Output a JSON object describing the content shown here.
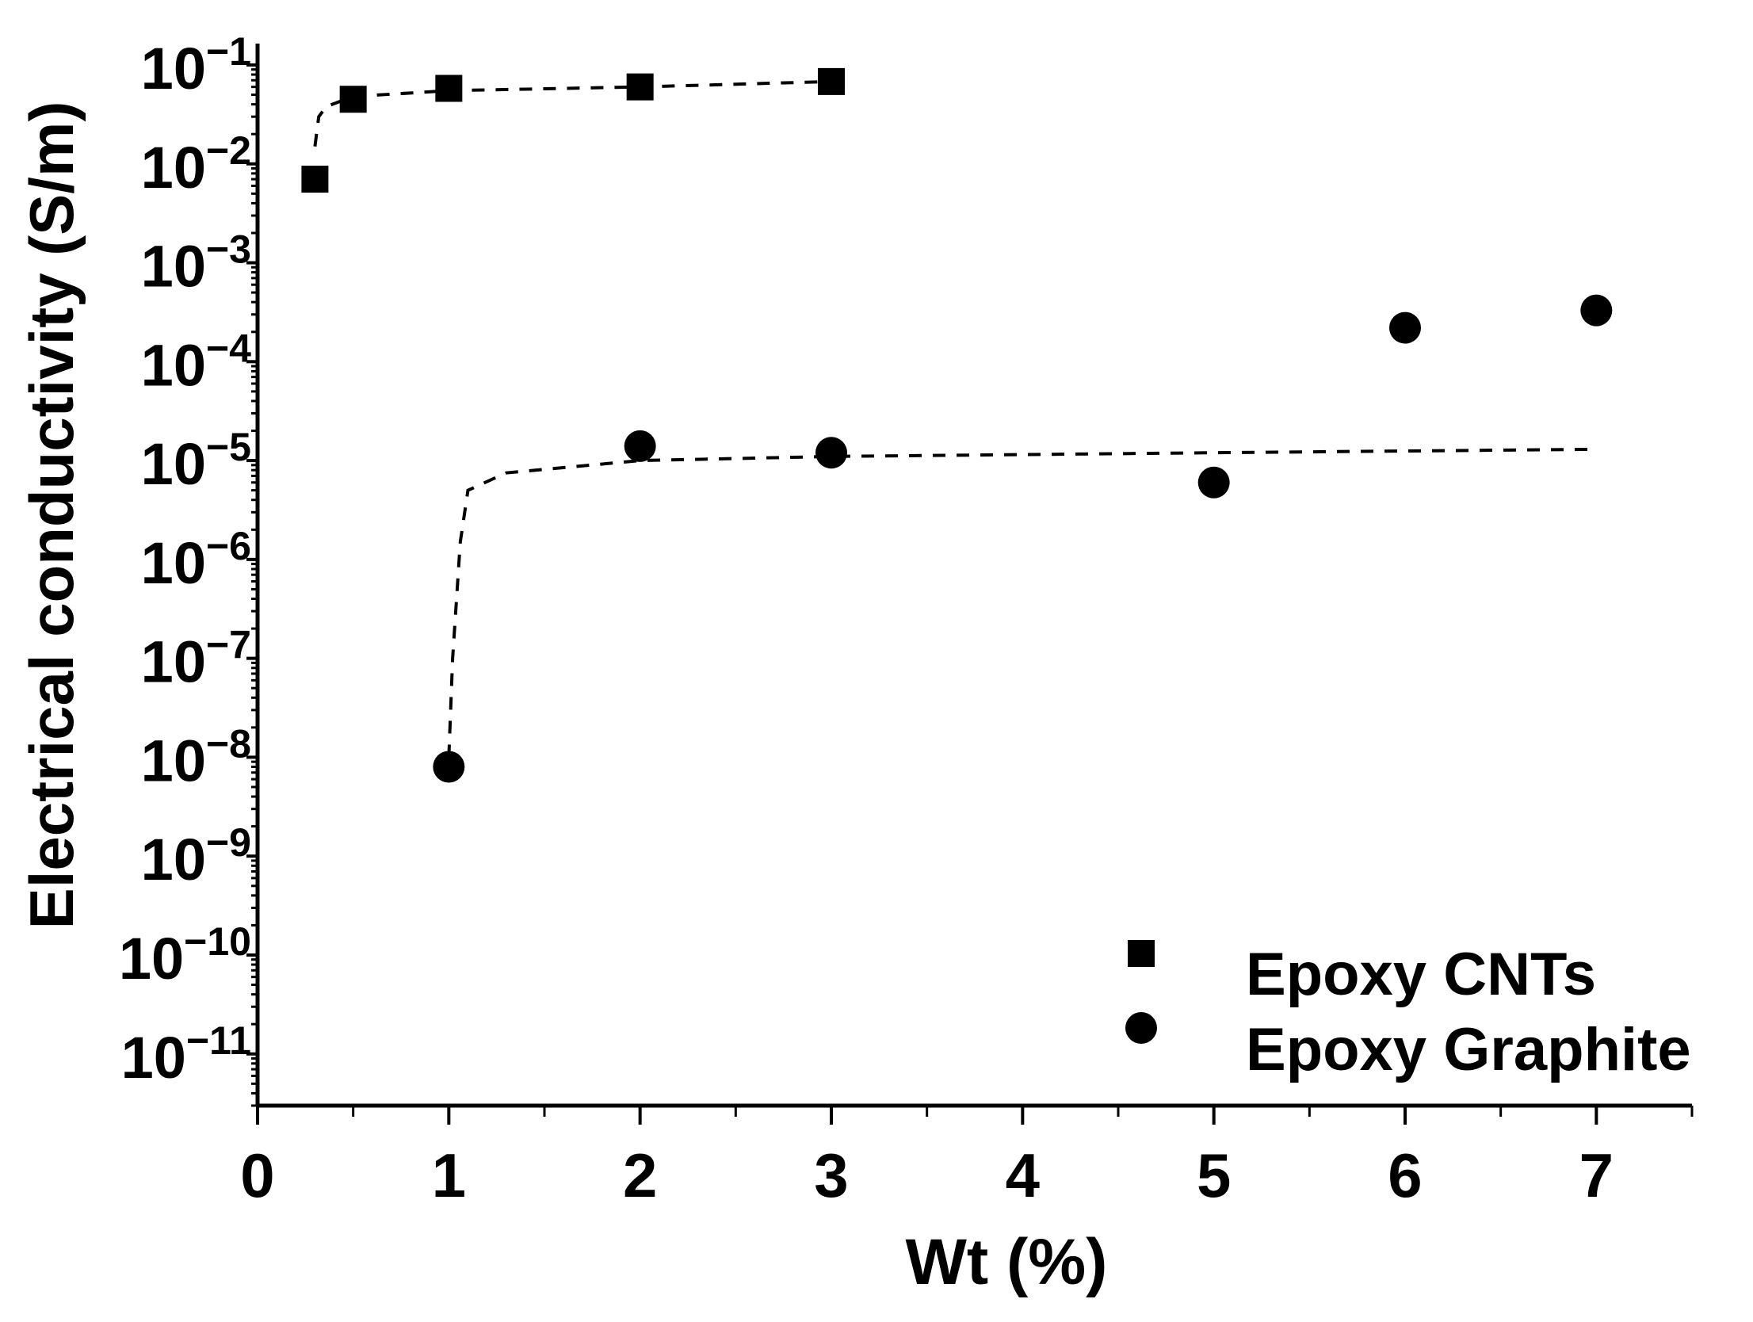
{
  "chart_data": {
    "type": "scatter",
    "xlabel": "Wt (%)",
    "ylabel": "Electrical conductivity (S/m)",
    "xlim": [
      0,
      7.5
    ],
    "ylim": [
      3e-12,
      0.15
    ],
    "yscale": "log",
    "x_ticks": [
      0,
      1,
      2,
      3,
      4,
      5,
      6,
      7
    ],
    "x_minor_ticks": [
      0.5,
      1.5,
      2.5,
      3.5,
      4.5,
      5.5,
      6.5,
      7.5
    ],
    "y_tick_exponents": [
      -1,
      -2,
      -3,
      -4,
      -5,
      -6,
      -7,
      -8,
      -9,
      -10,
      -11
    ],
    "y_tick_base": "10",
    "legend_position": "bottom-right",
    "series": [
      {
        "name": "Epoxy CNTs",
        "marker": "square",
        "color": "#000000",
        "x": [
          0.3,
          0.5,
          1,
          2,
          3
        ],
        "y": [
          0.007,
          0.045,
          0.058,
          0.06,
          0.068
        ],
        "fit": {
          "style": "dashed",
          "x": [
            0.3,
            0.32,
            0.36,
            0.5,
            1,
            2,
            3
          ],
          "y": [
            0.015,
            0.03,
            0.038,
            0.048,
            0.055,
            0.06,
            0.068
          ]
        }
      },
      {
        "name": "Epoxy Graphite",
        "marker": "circle",
        "color": "#000000",
        "x": [
          1,
          2,
          3,
          5,
          6,
          7
        ],
        "y": [
          8e-09,
          1.4e-05,
          1.2e-05,
          6e-06,
          0.00022,
          0.00033
        ],
        "fit": {
          "style": "dashed",
          "x": [
            1,
            1.02,
            1.06,
            1.1,
            1.3,
            2,
            3,
            5,
            7
          ],
          "y": [
            1e-08,
            1e-07,
            1.5e-06,
            5e-06,
            7.5e-06,
            1e-05,
            1.1e-05,
            1.2e-05,
            1.3e-05
          ]
        }
      }
    ]
  }
}
